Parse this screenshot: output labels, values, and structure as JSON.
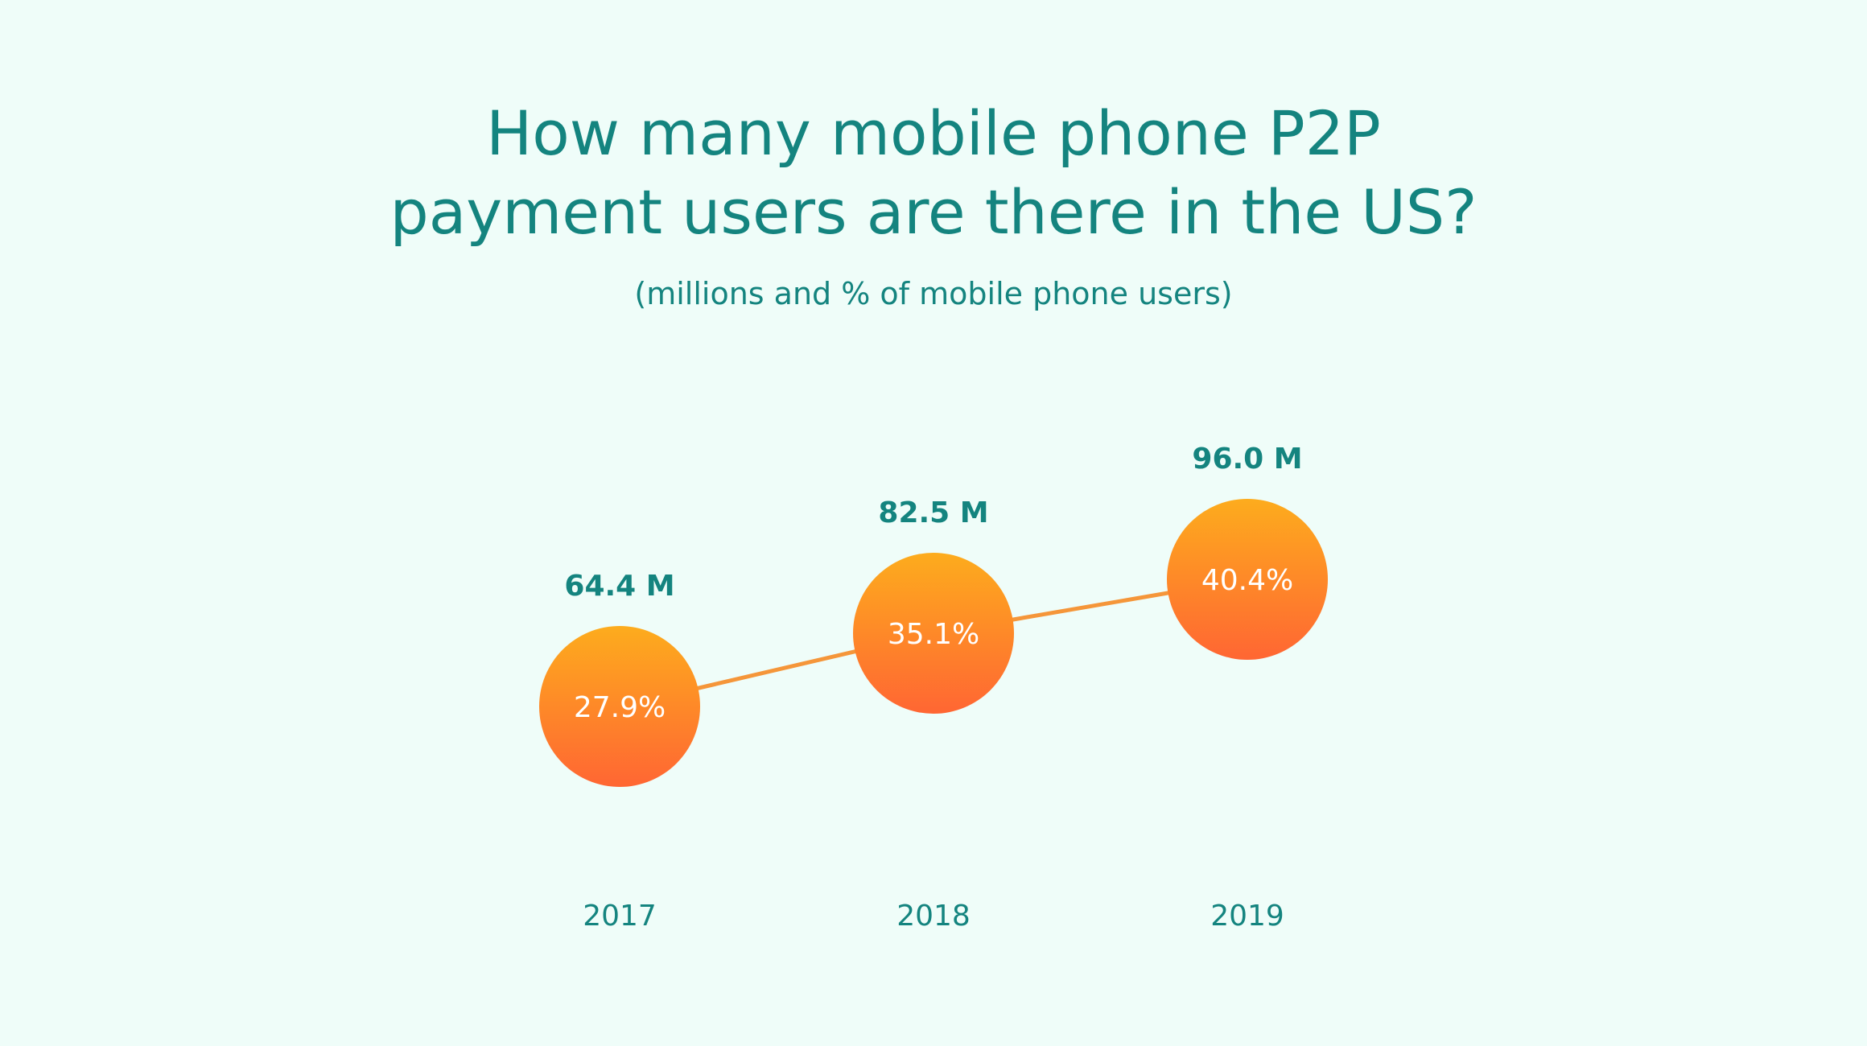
{
  "colors": {
    "background": "#effdf9",
    "text": "#14847f",
    "bubble_top": "#fdac1d",
    "bubble_bottom": "#ff6633",
    "bubble_text": "#ffffff",
    "line": "#f5963a"
  },
  "chart_data": {
    "type": "line",
    "title_lines": [
      "How many mobile phone P2P",
      "payment users are there in the US?"
    ],
    "subtitle": "(millions and % of mobile phone users)",
    "categories": [
      "2017",
      "2018",
      "2019"
    ],
    "series": [
      {
        "values": [
          64.4,
          82.5,
          96.0
        ],
        "value_labels": [
          "64.4 M",
          "82.5 M",
          "96.0 M"
        ]
      },
      {
        "values": [
          27.9,
          35.1,
          40.4
        ],
        "value_labels": [
          "27.9%",
          "35.1%",
          "40.4%"
        ]
      }
    ],
    "xlabel": "",
    "ylabel": "",
    "grid": false,
    "legend": "none"
  }
}
